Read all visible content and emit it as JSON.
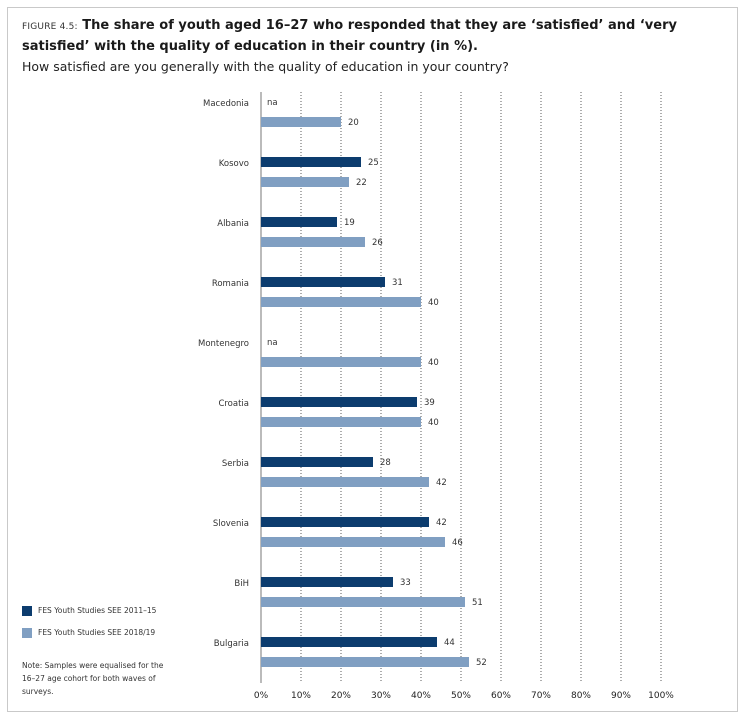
{
  "figure": {
    "label": "FIGURE 4.5:",
    "title": "The share of youth aged 16–27 who responded that they are ‘satisfied’ and ‘very satisfied’ with the quality of education in their country (in %).",
    "question": "How satisfied are you generally with the quality of education in your country?",
    "note": "Note: Samples were equalised for the 16–27 age cohort for both waves of surveys."
  },
  "chart_data": {
    "type": "bar",
    "orientation": "horizontal",
    "categories": [
      "Macedonia",
      "Kosovo",
      "Albania",
      "Romania",
      "Montenegro",
      "Croatia",
      "Serbia",
      "Slovenia",
      "BiH",
      "Bulgaria"
    ],
    "series": [
      {
        "name": "FES Youth Studies SEE 2011–15",
        "color": "#0c3c6e",
        "values": [
          null,
          25,
          19,
          31,
          null,
          39,
          28,
          42,
          33,
          44
        ]
      },
      {
        "name": "FES Youth Studies SEE 2018/19",
        "color": "#809fc2",
        "values": [
          20,
          22,
          26,
          40,
          40,
          40,
          42,
          46,
          51,
          52
        ]
      }
    ],
    "missing_label": "na",
    "xlim": [
      0,
      100
    ],
    "x_ticks": [
      0,
      10,
      20,
      30,
      40,
      50,
      60,
      70,
      80,
      90,
      100
    ],
    "x_tick_labels": [
      "0%",
      "10%",
      "20%",
      "30%",
      "40%",
      "50%",
      "60%",
      "70%",
      "80%",
      "90%",
      "100%"
    ],
    "grid": "vertical dotted",
    "legend_position": "bottom-left"
  }
}
